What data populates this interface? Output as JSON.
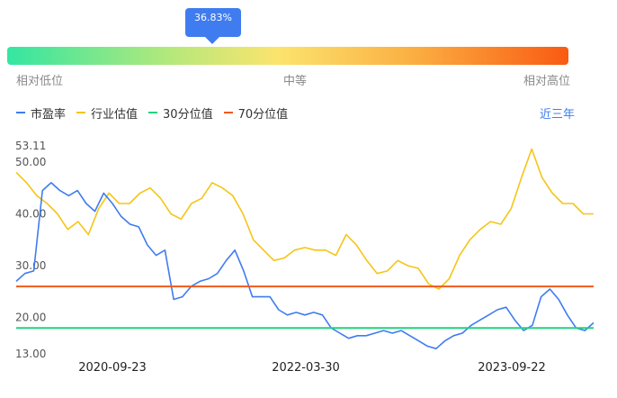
{
  "percentile": {
    "badge_text": "36.83%",
    "value_percent": 36.83,
    "scale": {
      "low": "相对低位",
      "mid": "中等",
      "high": "相对高位"
    }
  },
  "legend": [
    {
      "name": "市盈率",
      "color": "#3f7cf0"
    },
    {
      "name": "行业估值",
      "color": "#f5c518"
    },
    {
      "name": "30分位值",
      "color": "#1fd47e"
    },
    {
      "name": "70分位值",
      "color": "#f25a1c"
    }
  ],
  "range_link": "近三年",
  "chart_data": {
    "type": "line",
    "y_ticks": [
      "53.11",
      "50.00",
      "40.00",
      "30.00",
      "20.00",
      "13.00"
    ],
    "x_ticks": [
      "2020-09-23",
      "2022-03-30",
      "2023-09-22"
    ],
    "ylim": [
      13.0,
      53.11
    ],
    "series": [
      {
        "name": "市盈率",
        "values": [
          27,
          28.5,
          29,
          44.5,
          46,
          44.5,
          43.5,
          44.5,
          42,
          40.5,
          44,
          42,
          39.5,
          38,
          37.5,
          34,
          32,
          33,
          23.5,
          24,
          26,
          27,
          27.5,
          28.5,
          31,
          33,
          29,
          24,
          24,
          24,
          21.5,
          20.5,
          21,
          20.5,
          21,
          20.5,
          18,
          17,
          16,
          16.5,
          16.5,
          17,
          17.5,
          17,
          17.5,
          16.5,
          15.5,
          14.5,
          14,
          15.5,
          16.5,
          17,
          18.5,
          19.5,
          20.5,
          21.5,
          22,
          19.5,
          17.5,
          18.5,
          24,
          25.5,
          23.5,
          20.5,
          18,
          17.5,
          19
        ]
      },
      {
        "name": "行业估值",
        "values": [
          48,
          46,
          43.5,
          42,
          40,
          37,
          38.5,
          36,
          41,
          44,
          42,
          42,
          44,
          45,
          43,
          40,
          39,
          42,
          43,
          46,
          45,
          43.5,
          40,
          35,
          33,
          31,
          31.5,
          33,
          33.5,
          33,
          33,
          32,
          36,
          34,
          31,
          28.5,
          29,
          31,
          30,
          29.5,
          26.5,
          25.5,
          27.5,
          32,
          35,
          37,
          38.5,
          38,
          41,
          47,
          52.5,
          47,
          44,
          42,
          42,
          40,
          40
        ]
      },
      {
        "name": "30分位值",
        "values": [
          18.0
        ]
      },
      {
        "name": "70分位值",
        "values": [
          26.0
        ]
      }
    ]
  }
}
